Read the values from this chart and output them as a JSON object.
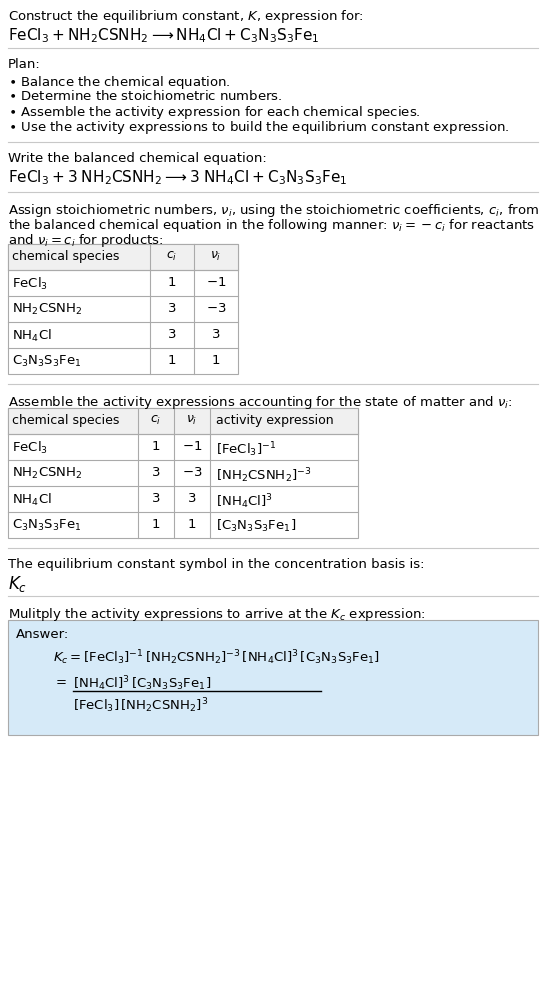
{
  "title_line1": "Construct the equilibrium constant, $K$, expression for:",
  "title_line2": "$\\mathrm{FeCl_3 + NH_2CSNH_2 \\longrightarrow NH_4Cl + C_3N_3S_3Fe_1}$",
  "plan_header": "Plan:",
  "plan_items": [
    "$\\bullet$ Balance the chemical equation.",
    "$\\bullet$ Determine the stoichiometric numbers.",
    "$\\bullet$ Assemble the activity expression for each chemical species.",
    "$\\bullet$ Use the activity expressions to build the equilibrium constant expression."
  ],
  "balanced_header": "Write the balanced chemical equation:",
  "balanced_eq": "$\\mathrm{FeCl_3 + 3\\;NH_2CSNH_2 \\longrightarrow 3\\;NH_4Cl + C_3N_3S_3Fe_1}$",
  "stoich_intro1": "Assign stoichiometric numbers, $\\nu_i$, using the stoichiometric coefficients, $c_i$, from",
  "stoich_intro2": "the balanced chemical equation in the following manner: $\\nu_i = -c_i$ for reactants",
  "stoich_intro3": "and $\\nu_i = c_i$ for products:",
  "table1_headers": [
    "chemical species",
    "$c_i$",
    "$\\nu_i$"
  ],
  "table1_rows": [
    [
      "$\\mathrm{FeCl_3}$",
      "1",
      "$-1$"
    ],
    [
      "$\\mathrm{NH_2CSNH_2}$",
      "3",
      "$-3$"
    ],
    [
      "$\\mathrm{NH_4Cl}$",
      "3",
      "3"
    ],
    [
      "$\\mathrm{C_3N_3S_3Fe_1}$",
      "1",
      "1"
    ]
  ],
  "assemble_intro": "Assemble the activity expressions accounting for the state of matter and $\\nu_i$:",
  "table2_headers": [
    "chemical species",
    "$c_i$",
    "$\\nu_i$",
    "activity expression"
  ],
  "table2_rows": [
    [
      "$\\mathrm{FeCl_3}$",
      "1",
      "$-1$",
      "$[\\mathrm{FeCl_3}]^{-1}$"
    ],
    [
      "$\\mathrm{NH_2CSNH_2}$",
      "3",
      "$-3$",
      "$[\\mathrm{NH_2CSNH_2}]^{-3}$"
    ],
    [
      "$\\mathrm{NH_4Cl}$",
      "3",
      "3",
      "$[\\mathrm{NH_4Cl}]^3$"
    ],
    [
      "$\\mathrm{C_3N_3S_3Fe_1}$",
      "1",
      "1",
      "$[\\mathrm{C_3N_3S_3Fe_1}]$"
    ]
  ],
  "kc_intro": "The equilibrium constant symbol in the concentration basis is:",
  "kc_symbol": "$K_c$",
  "multiply_intro": "Mulitply the activity expressions to arrive at the $K_c$ expression:",
  "answer_label": "Answer:",
  "answer_line1": "$K_c = [\\mathrm{FeCl_3}]^{-1}\\,[\\mathrm{NH_2CSNH_2}]^{-3}\\,[\\mathrm{NH_4Cl}]^3\\,[\\mathrm{C_3N_3S_3Fe_1}]$",
  "answer_eq_sign": "$=$",
  "answer_num": "$[\\mathrm{NH_4Cl}]^3\\,[\\mathrm{C_3N_3S_3Fe_1}]$",
  "answer_den": "$[\\mathrm{FeCl_3}]\\,[\\mathrm{NH_2CSNH_2}]^3$",
  "bg_color": "#ffffff",
  "answer_bg": "#d6eaf8",
  "sep_color": "#c8c8c8",
  "table_border": "#aaaaaa",
  "table_header_bg": "#f0f0f0"
}
